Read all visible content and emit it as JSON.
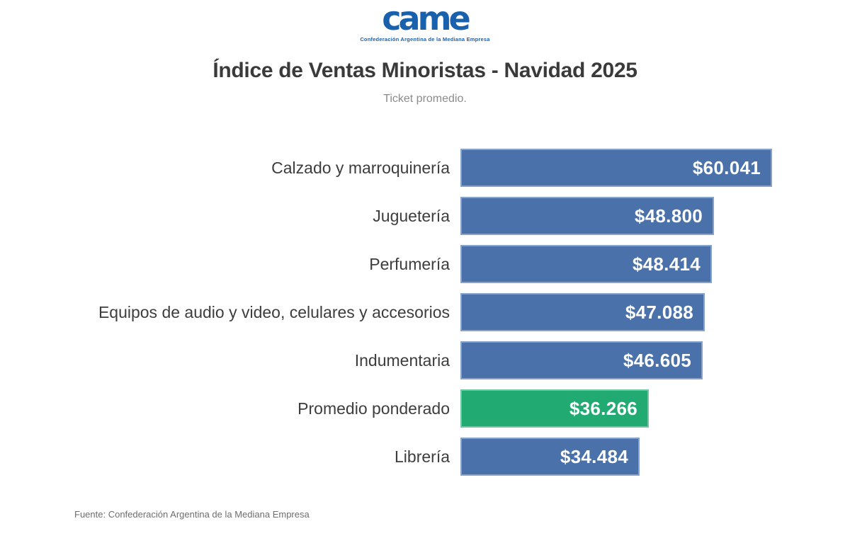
{
  "logo": {
    "wordmark": "came",
    "subtext": "Confederación Argentina de la Mediana Empresa",
    "color": "#1961ac"
  },
  "header": {
    "title": "Índice de Ventas Minoristas - Navidad 2025",
    "subtitle": "Ticket promedio."
  },
  "footer": {
    "source": "Fuente: Confederación Argentina de la Mediana Empresa"
  },
  "chart_data": {
    "type": "bar",
    "orientation": "horizontal",
    "title": "Índice de Ventas Minoristas - Navidad 2025",
    "subtitle": "Ticket promedio.",
    "categories": [
      "Calzado y marroquinería",
      "Juguetería",
      "Perfumería",
      "Equipos de audio y video, celulares y accesorios",
      "Indumentaria",
      "Promedio ponderado",
      "Librería"
    ],
    "values": [
      60041,
      48800,
      48414,
      47088,
      46605,
      36266,
      34484
    ],
    "value_labels": [
      "$60.041",
      "$48.800",
      "$48.414",
      "$47.088",
      "$46.605",
      "$36.266",
      "$34.484"
    ],
    "highlight_index": 5,
    "colors": {
      "bar_default": "#4a71a9",
      "bar_highlight": "#21ab72",
      "value_text": "#ffffff"
    },
    "xlim": [
      0,
      60041
    ],
    "grid": false,
    "legend": "none",
    "value_label_position": "inside-end",
    "source": "Fuente: Confederación Argentina de la Mediana Empresa"
  }
}
